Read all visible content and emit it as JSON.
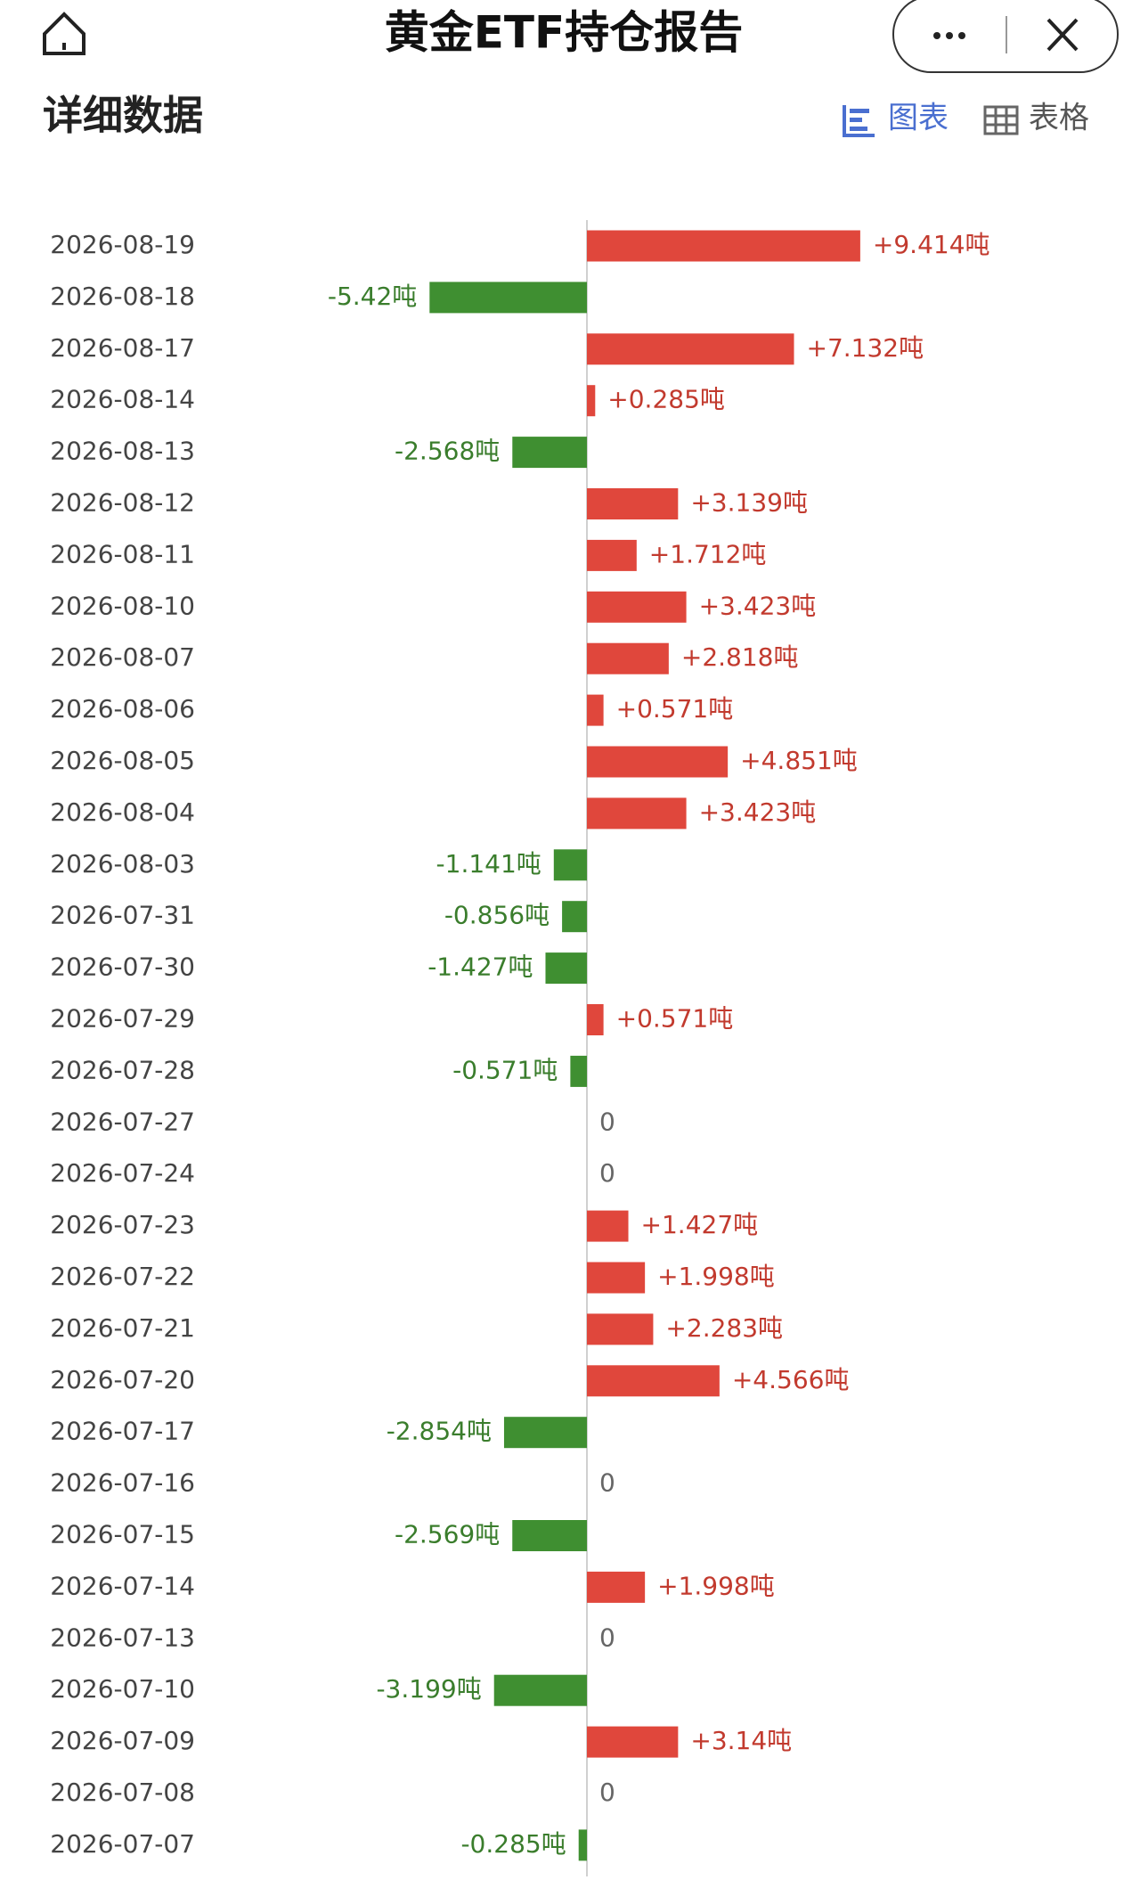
{
  "header": {
    "title": "黄金ETF持仓报告"
  },
  "section_title": "详细数据",
  "tabs": [
    "图表",
    "表格"
  ],
  "chart_data": {
    "type": "bar",
    "orientation": "horizontal",
    "categories": [
      "2026-08-19",
      "2026-08-18",
      "2026-08-17",
      "2026-08-14",
      "2026-08-13",
      "2026-08-12",
      "2026-08-11",
      "2026-08-10",
      "2026-08-07",
      "2026-08-06",
      "2026-08-05",
      "2026-08-04",
      "2026-08-03",
      "2026-07-31",
      "2026-07-30",
      "2026-07-29",
      "2026-07-28",
      "2026-07-27",
      "2026-07-24",
      "2026-07-23",
      "2026-07-22",
      "2026-07-21",
      "2026-07-20",
      "2026-07-17",
      "2026-07-16",
      "2026-07-15",
      "2026-07-14",
      "2026-07-13",
      "2026-07-10",
      "2026-07-09",
      "2026-07-08",
      "2026-07-07"
    ],
    "values": [
      9.414,
      -5.42,
      7.132,
      0.285,
      -2.568,
      3.139,
      1.712,
      3.423,
      2.818,
      0.571,
      4.851,
      3.423,
      -1.141,
      -0.856,
      -1.427,
      0.571,
      -0.571,
      0,
      0,
      1.427,
      1.998,
      2.283,
      4.566,
      -2.854,
      0,
      -2.569,
      1.998,
      0,
      -3.199,
      3.14,
      0,
      -0.285
    ],
    "value_labels": [
      "+9.414吨",
      "-5.42吨",
      "+7.132吨",
      "+0.285吨",
      "-2.568吨",
      "+3.139吨",
      "+1.712吨",
      "+3.423吨",
      "+2.818吨",
      "+0.571吨",
      "+4.851吨",
      "+3.423吨",
      "-1.141吨",
      "-0.856吨",
      "-1.427吨",
      "+0.571吨",
      "-0.571吨",
      "0",
      "0",
      "+1.427吨",
      "+1.998吨",
      "+2.283吨",
      "+4.566吨",
      "-2.854吨",
      "0",
      "-2.569吨",
      "+1.998吨",
      "0",
      "-3.199吨",
      "+3.14吨",
      "0",
      "-0.285吨"
    ],
    "positive_color": "#e0473c",
    "negative_color": "#3f8f31"
  }
}
